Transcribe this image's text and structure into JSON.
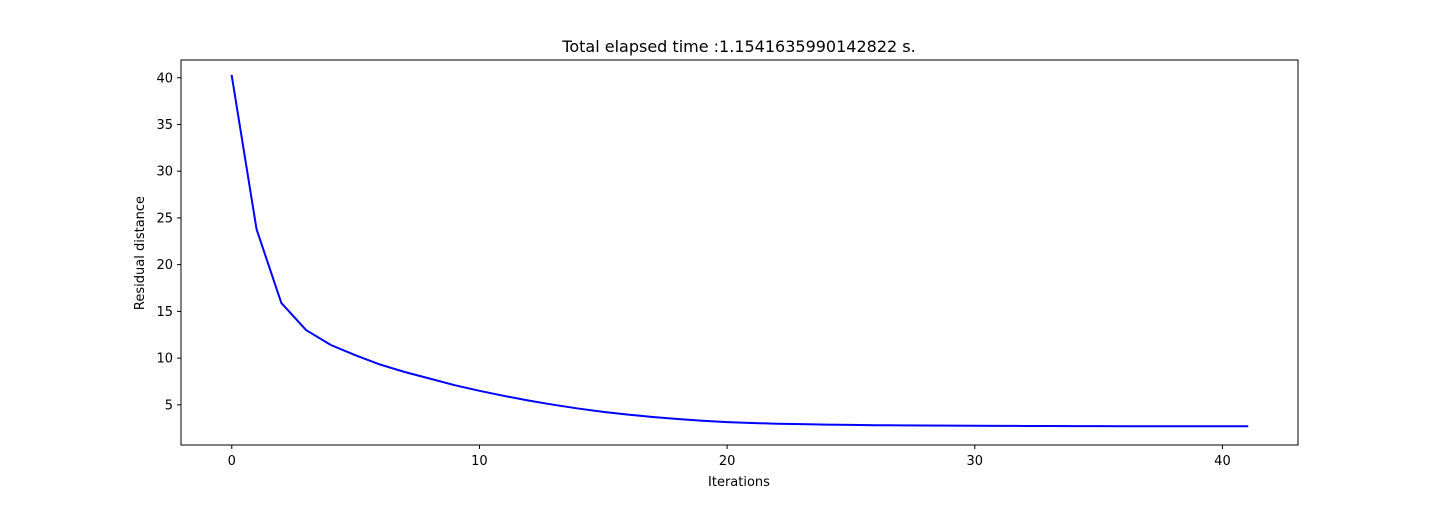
{
  "chart_data": {
    "type": "line",
    "title": "Total elapsed time :1.1541635990142822 s.",
    "xlabel": "Iterations",
    "ylabel": "Residual distance",
    "xlim": [
      -2.05,
      43.05
    ],
    "ylim": [
      0.7,
      41.9
    ],
    "xticks": [
      0,
      10,
      20,
      30,
      40
    ],
    "yticks": [
      5,
      10,
      15,
      20,
      25,
      30,
      35,
      40
    ],
    "grid": false,
    "legend": "none",
    "series": [
      {
        "color": "#0000ff",
        "x": [
          0,
          1,
          2,
          3,
          4,
          5,
          6,
          7,
          8,
          9,
          10,
          11,
          12,
          13,
          14,
          15,
          16,
          17,
          18,
          19,
          20,
          21,
          22,
          23,
          24,
          25,
          26,
          27,
          28,
          29,
          30,
          31,
          32,
          33,
          34,
          35,
          36,
          37,
          38,
          39,
          40,
          41
        ],
        "y": [
          40.2,
          23.8,
          15.9,
          13.0,
          11.4,
          10.3,
          9.3,
          8.5,
          7.8,
          7.1,
          6.5,
          5.95,
          5.45,
          5.0,
          4.6,
          4.25,
          3.95,
          3.7,
          3.48,
          3.3,
          3.15,
          3.05,
          2.98,
          2.93,
          2.88,
          2.85,
          2.82,
          2.8,
          2.78,
          2.77,
          2.76,
          2.75,
          2.74,
          2.73,
          2.72,
          2.72,
          2.71,
          2.71,
          2.7,
          2.7,
          2.7,
          2.7
        ]
      }
    ]
  }
}
